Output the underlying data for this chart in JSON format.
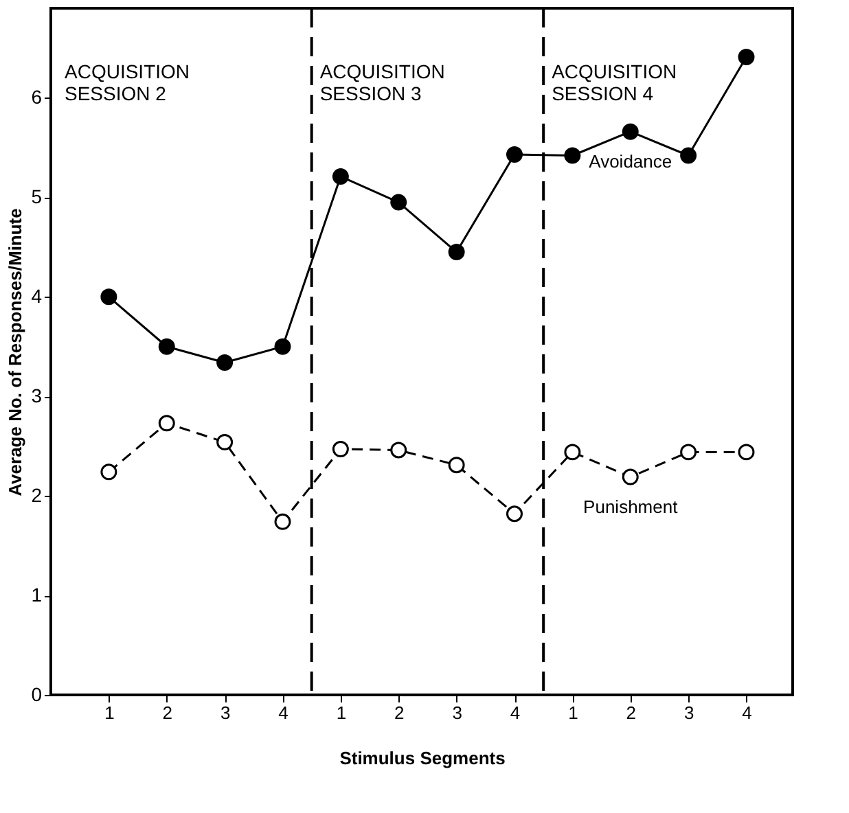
{
  "chart_data": {
    "type": "line",
    "xlabel": "Stimulus Segments",
    "ylabel": "Average No. of Responses/Minute",
    "categories": [
      "1",
      "2",
      "3",
      "4",
      "1",
      "2",
      "3",
      "4",
      "1",
      "2",
      "3",
      "4"
    ],
    "ylim": [
      0,
      6.9
    ],
    "yticks": [
      0,
      1,
      2,
      3,
      4,
      5,
      6
    ],
    "series": [
      {
        "name": "Avoidance",
        "color": "#000000",
        "line_style": "solid",
        "values": [
          4.0,
          3.5,
          3.34,
          3.5,
          5.21,
          4.95,
          4.45,
          5.43,
          5.42,
          5.66,
          5.42,
          6.41
        ]
      },
      {
        "name": "Punishment",
        "color": "#000000",
        "line_style": "dashed",
        "values": [
          2.24,
          2.73,
          2.54,
          1.74,
          2.47,
          2.46,
          2.31,
          1.82,
          2.44,
          2.19,
          2.44,
          2.44
        ]
      }
    ],
    "annotations": [
      "ACQUISITION\nSESSION 2",
      "ACQUISITION\nSESSION 3",
      "ACQUISITION\nSESSION 4"
    ],
    "marker": "circle",
    "grid": false
  }
}
